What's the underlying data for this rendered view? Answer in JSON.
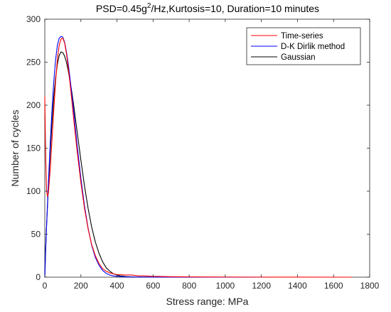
{
  "chart_data": {
    "type": "line",
    "title": "PSD=0.45g²/Hz,Kurtosis=10, Duration=10 minutes",
    "title_parts": {
      "pre": "PSD=0.45g",
      "sup": "2",
      "post": "/Hz,Kurtosis=10, Duration=10 minutes"
    },
    "xlabel": "Stress range: MPa",
    "ylabel": "Number of cycles",
    "xlim": [
      0,
      1800
    ],
    "ylim": [
      0,
      300
    ],
    "xticks": [
      0,
      200,
      400,
      600,
      800,
      1000,
      1200,
      1400,
      1600,
      1800
    ],
    "yticks": [
      0,
      50,
      100,
      150,
      200,
      250,
      300
    ],
    "grid": false,
    "legend_position": "top-right",
    "series": [
      {
        "name": "Time-series",
        "color": "#ff0000",
        "x": [
          0,
          5,
          10,
          15,
          20,
          30,
          40,
          50,
          60,
          70,
          80,
          90,
          100,
          110,
          120,
          130,
          140,
          150,
          160,
          180,
          200,
          220,
          240,
          260,
          280,
          300,
          320,
          340,
          360,
          380,
          400,
          420,
          440,
          460,
          480,
          500,
          520,
          550,
          600,
          650,
          700,
          800,
          900,
          1000,
          1200,
          1400,
          1700
        ],
        "y": [
          210,
          140,
          100,
          94,
          98,
          125,
          160,
          195,
          228,
          254,
          270,
          277,
          278,
          272,
          260,
          244,
          225,
          205,
          184,
          145,
          110,
          80,
          56,
          38,
          25,
          16,
          10,
          7,
          5,
          4,
          3,
          3,
          2.5,
          2.5,
          2.5,
          2,
          1.5,
          1.5,
          1,
          0.8,
          0.6,
          0.4,
          0.3,
          0.2,
          0.1,
          0.05,
          0
        ]
      },
      {
        "name": "D-K Dirlik method",
        "color": "#0000ff",
        "x": [
          0,
          5,
          10,
          20,
          30,
          40,
          50,
          60,
          70,
          80,
          90,
          100,
          110,
          120,
          130,
          140,
          150,
          160,
          180,
          200,
          220,
          240,
          260,
          280,
          300,
          320,
          340,
          360,
          380,
          400,
          450,
          500,
          600,
          800,
          1000,
          1400,
          1700
        ],
        "y": [
          0,
          32,
          60,
          110,
          155,
          195,
          228,
          253,
          270,
          278,
          280,
          279,
          273,
          262,
          248,
          231,
          212,
          193,
          152,
          115,
          83,
          57,
          37,
          23,
          14,
          8,
          4.5,
          2.5,
          1.5,
          1,
          0.4,
          0.2,
          0.1,
          0,
          0,
          0,
          0
        ]
      },
      {
        "name": "Gaussian",
        "color": "#000000",
        "x": [
          0,
          5,
          10,
          20,
          30,
          40,
          50,
          60,
          70,
          80,
          90,
          100,
          110,
          120,
          130,
          140,
          150,
          160,
          180,
          200,
          220,
          240,
          260,
          280,
          300,
          320,
          340,
          360,
          380,
          400,
          420,
          450,
          500,
          600,
          800,
          1000,
          1400,
          1700
        ],
        "y": [
          0,
          35,
          60,
          105,
          145,
          180,
          210,
          232,
          248,
          258,
          262,
          261,
          257,
          250,
          240,
          228,
          215,
          200,
          168,
          136,
          106,
          80,
          58,
          41,
          28,
          18,
          11,
          7,
          4,
          2.5,
          1.5,
          0.7,
          0.2,
          0.05,
          0,
          0,
          0,
          0
        ]
      }
    ]
  }
}
